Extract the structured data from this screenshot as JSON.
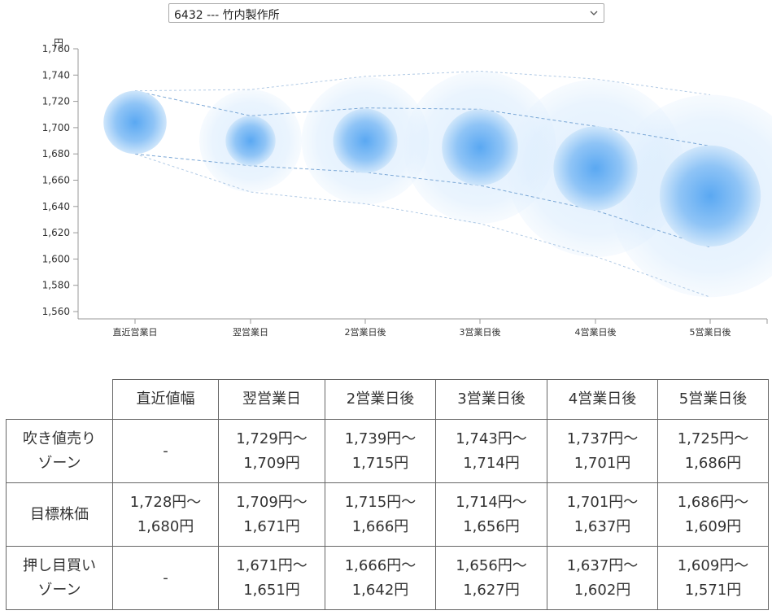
{
  "selector": {
    "value": "6432 --- 竹内製作所"
  },
  "chart_data": {
    "type": "bubble",
    "ylabel": "円",
    "ylim": [
      1560,
      1760
    ],
    "yticks": [
      1760,
      1740,
      1720,
      1700,
      1680,
      1660,
      1640,
      1620,
      1600,
      1580,
      1560
    ],
    "ytick_labels": [
      "1,760",
      "1,740",
      "1,720",
      "1,700",
      "1,680",
      "1,660",
      "1,640",
      "1,620",
      "1,600",
      "1,580",
      "1,560"
    ],
    "categories": [
      "直近営業日",
      "翌営業日",
      "2営業日後",
      "3営業日後",
      "4営業日後",
      "5営業日後"
    ],
    "center": [
      1704,
      1690,
      1690,
      1685,
      1669,
      1648
    ],
    "target_high": [
      1728,
      1709,
      1715,
      1714,
      1701,
      1686
    ],
    "target_low": [
      1680,
      1671,
      1666,
      1656,
      1637,
      1609
    ],
    "zone_high": [
      1728,
      1729,
      1739,
      1743,
      1737,
      1725
    ],
    "zone_low": [
      1680,
      1651,
      1642,
      1627,
      1602,
      1571
    ],
    "colors": {
      "core": "#4d9ff0",
      "halo": "#cfe6fb",
      "band": "#7aa7d6"
    }
  },
  "table": {
    "headers": [
      "",
      "直近値幅",
      "翌営業日",
      "2営業日後",
      "3営業日後",
      "4営業日後",
      "5営業日後"
    ],
    "rows": [
      {
        "label": [
          "吹き値売り",
          "ゾーン"
        ],
        "cells": [
          [
            "-"
          ],
          [
            "1,729円～",
            "1,709円"
          ],
          [
            "1,739円～",
            "1,715円"
          ],
          [
            "1,743円～",
            "1,714円"
          ],
          [
            "1,737円～",
            "1,701円"
          ],
          [
            "1,725円～",
            "1,686円"
          ]
        ]
      },
      {
        "label": [
          "目標株価"
        ],
        "cells": [
          [
            "1,728円～",
            "1,680円"
          ],
          [
            "1,709円～",
            "1,671円"
          ],
          [
            "1,715円～",
            "1,666円"
          ],
          [
            "1,714円～",
            "1,656円"
          ],
          [
            "1,701円～",
            "1,637円"
          ],
          [
            "1,686円～",
            "1,609円"
          ]
        ]
      },
      {
        "label": [
          "押し目買い",
          "ゾーン"
        ],
        "cells": [
          [
            "-"
          ],
          [
            "1,671円～",
            "1,651円"
          ],
          [
            "1,666円～",
            "1,642円"
          ],
          [
            "1,656円～",
            "1,627円"
          ],
          [
            "1,637円～",
            "1,602円"
          ],
          [
            "1,609円～",
            "1,571円"
          ]
        ]
      }
    ]
  }
}
